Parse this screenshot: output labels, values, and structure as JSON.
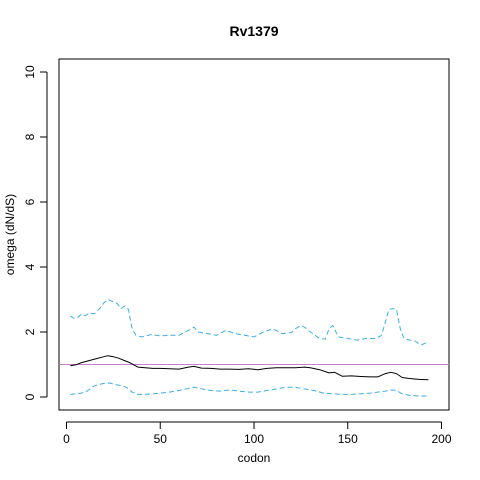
{
  "chart_data": {
    "type": "line",
    "title": "Rv1379",
    "xlabel": "codon",
    "ylabel": "omega (dN/dS)",
    "xlim": [
      -4,
      204
    ],
    "ylim": [
      -0.4,
      10.4
    ],
    "xticks": [
      0,
      50,
      100,
      150,
      200
    ],
    "yticks": [
      0,
      2,
      4,
      6,
      8,
      10
    ],
    "grid": false,
    "reference_line": {
      "y": 1,
      "color": "#c77fc7"
    },
    "series": [
      {
        "role": "estimate",
        "color": "#000000",
        "dash": "solid",
        "x": [
          2,
          5,
          8,
          12,
          16,
          20,
          22,
          25,
          28,
          31,
          34,
          38,
          42,
          46,
          50,
          55,
          60,
          65,
          68,
          72,
          77,
          82,
          87,
          92,
          97,
          102,
          107,
          112,
          117,
          122,
          127,
          130,
          135,
          140,
          143,
          147,
          152,
          157,
          162,
          166,
          170,
          173,
          176,
          179,
          183,
          188,
          193
        ],
        "values": [
          0.96,
          0.99,
          1.06,
          1.12,
          1.18,
          1.24,
          1.27,
          1.24,
          1.19,
          1.12,
          1.05,
          0.92,
          0.9,
          0.88,
          0.88,
          0.87,
          0.86,
          0.92,
          0.94,
          0.89,
          0.88,
          0.86,
          0.86,
          0.85,
          0.87,
          0.84,
          0.88,
          0.9,
          0.9,
          0.9,
          0.92,
          0.9,
          0.84,
          0.74,
          0.76,
          0.64,
          0.65,
          0.63,
          0.62,
          0.62,
          0.72,
          0.76,
          0.72,
          0.6,
          0.57,
          0.54,
          0.53
        ]
      },
      {
        "role": "upper bound",
        "color": "#3daee9",
        "dash": "dashed",
        "x": [
          2,
          4,
          6,
          8,
          10,
          12,
          15,
          18,
          20,
          22,
          25,
          27,
          29,
          31,
          33,
          35,
          37,
          40,
          45,
          50,
          55,
          60,
          65,
          68,
          70,
          75,
          80,
          85,
          90,
          95,
          100,
          105,
          110,
          115,
          120,
          122,
          125,
          127,
          130,
          135,
          138,
          140,
          142,
          145,
          150,
          155,
          160,
          165,
          168,
          170,
          172,
          174,
          176,
          178,
          180,
          183,
          186,
          189,
          193
        ],
        "values": [
          2.5,
          2.42,
          2.45,
          2.55,
          2.5,
          2.58,
          2.56,
          2.75,
          2.9,
          3.0,
          2.93,
          2.88,
          2.72,
          2.8,
          2.7,
          2.1,
          1.9,
          1.85,
          1.92,
          1.88,
          1.9,
          1.9,
          2.05,
          2.15,
          2.0,
          1.95,
          1.9,
          2.05,
          1.95,
          1.9,
          1.85,
          2.0,
          2.1,
          1.95,
          1.98,
          2.1,
          2.2,
          2.15,
          2.0,
          1.8,
          1.78,
          2.1,
          2.2,
          1.85,
          1.8,
          1.75,
          1.8,
          1.8,
          1.9,
          2.3,
          2.7,
          2.72,
          2.7,
          2.1,
          1.8,
          1.75,
          1.72,
          1.6,
          1.7
        ]
      },
      {
        "role": "lower bound",
        "color": "#3daee9",
        "dash": "dashed",
        "x": [
          2,
          5,
          8,
          11,
          14,
          17,
          20,
          23,
          26,
          29,
          32,
          35,
          38,
          42,
          46,
          50,
          55,
          60,
          64,
          68,
          72,
          77,
          82,
          87,
          92,
          97,
          102,
          107,
          112,
          117,
          122,
          127,
          132,
          137,
          142,
          147,
          152,
          157,
          162,
          166,
          170,
          173,
          176,
          179,
          183,
          188,
          193
        ],
        "values": [
          0.08,
          0.1,
          0.12,
          0.18,
          0.32,
          0.38,
          0.42,
          0.43,
          0.38,
          0.35,
          0.3,
          0.15,
          0.08,
          0.08,
          0.1,
          0.12,
          0.15,
          0.2,
          0.25,
          0.3,
          0.25,
          0.2,
          0.18,
          0.22,
          0.18,
          0.15,
          0.15,
          0.2,
          0.25,
          0.3,
          0.3,
          0.25,
          0.2,
          0.12,
          0.1,
          0.08,
          0.08,
          0.1,
          0.12,
          0.15,
          0.18,
          0.22,
          0.2,
          0.1,
          0.05,
          0.03,
          0.03
        ]
      }
    ]
  }
}
